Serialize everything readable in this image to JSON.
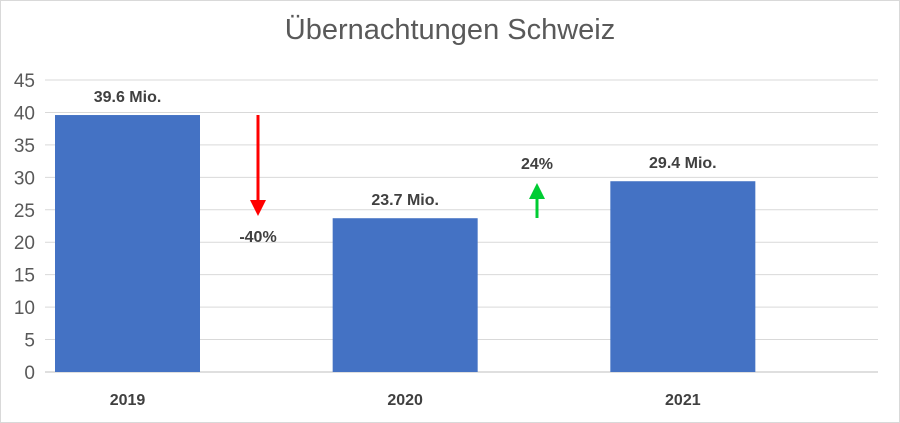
{
  "chart_data": {
    "type": "bar",
    "title": "Übernachtungen Schweiz",
    "categories": [
      "2019",
      "2020",
      "2021"
    ],
    "values": [
      39.6,
      23.7,
      29.4
    ],
    "data_labels": [
      "39.6 Mio.",
      "23.7 Mio.",
      "29.4 Mio."
    ],
    "ylim": [
      0,
      45
    ],
    "yticks": [
      "0",
      "5",
      "10",
      "15",
      "20",
      "25",
      "30",
      "35",
      "40",
      "45"
    ],
    "grid": true,
    "bar_color": "#4472c4",
    "annotations": [
      {
        "text": "-40%",
        "direction": "down",
        "color": "#ff0000",
        "between": [
          "2019",
          "2020"
        ]
      },
      {
        "text": "24%",
        "direction": "up",
        "color": "#00cc33",
        "between": [
          "2020",
          "2021"
        ]
      }
    ]
  }
}
